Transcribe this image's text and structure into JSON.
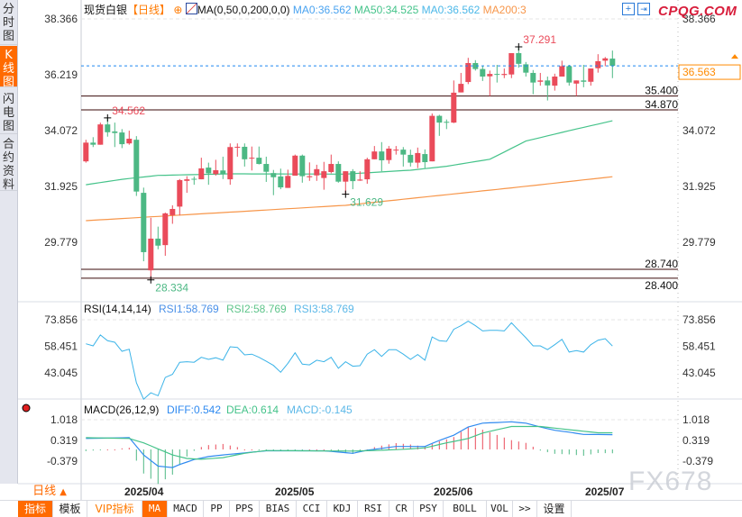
{
  "sidebar": {
    "tabs": [
      {
        "label": [
          "分",
          "时",
          "图"
        ],
        "active": false
      },
      {
        "label": [
          "K",
          "线",
          "图"
        ],
        "active": true
      },
      {
        "label": [
          "闪",
          "电",
          "图"
        ],
        "active": false
      },
      {
        "label": [
          "合",
          "约",
          "资",
          "料"
        ],
        "active": false
      }
    ]
  },
  "header": {
    "symbol": "现货白银",
    "period": "【日线】",
    "indicator": "MA(0,50,0,200,0,0)",
    "ma_values": [
      {
        "label": "MA0:36.562",
        "color": "#4aa3f0"
      },
      {
        "label": "MA50:34.525",
        "color": "#45c38a"
      },
      {
        "label": "MA0:36.562",
        "color": "#4cb8e8"
      },
      {
        "label": "MA200:3",
        "color": "#f7964a"
      }
    ],
    "logo": "CPQG.COM"
  },
  "colors": {
    "up": "#ea4b5a",
    "down": "#4cb884",
    "ma50": "#45c38a",
    "ma200": "#f7964a",
    "rsi": "#3ab3e8",
    "diff": "#2f8af0",
    "dea": "#45c38a",
    "accent": "#ff6a00"
  },
  "chart_data": {
    "type": "candlestick",
    "title": "现货白银 日线",
    "price_axis": {
      "ticks": [
        "38.366",
        "36.219",
        "34.072",
        "31.925",
        "29.779"
      ],
      "range": [
        27.9,
        38.7
      ]
    },
    "x_ticks": [
      "2025/04",
      "2025/05",
      "2025/06",
      "2025/07"
    ],
    "candles": [
      [
        32.89,
        33.72,
        32.84,
        33.61
      ],
      [
        33.61,
        33.82,
        33.44,
        33.53
      ],
      [
        33.53,
        34.38,
        33.53,
        34.31
      ],
      [
        34.31,
        34.56,
        33.84,
        34.01
      ],
      [
        34.04,
        34.38,
        33.44,
        33.98
      ],
      [
        34.0,
        34.13,
        33.4,
        33.55
      ],
      [
        33.58,
        34.07,
        33.53,
        33.76
      ],
      [
        33.72,
        33.86,
        31.56,
        31.73
      ],
      [
        31.68,
        31.88,
        29.05,
        29.4
      ],
      [
        28.7,
        30.72,
        28.334,
        29.92
      ],
      [
        29.92,
        30.38,
        29.51,
        29.65
      ],
      [
        29.67,
        30.92,
        29.26,
        30.89
      ],
      [
        30.82,
        31.2,
        30.49,
        31.06
      ],
      [
        31.15,
        32.21,
        30.81,
        32.17
      ],
      [
        32.14,
        32.32,
        31.68,
        32.2
      ],
      [
        32.22,
        32.31,
        31.99,
        32.19
      ],
      [
        32.2,
        33.03,
        32.2,
        32.62
      ],
      [
        32.65,
        32.84,
        31.99,
        32.43
      ],
      [
        32.4,
        32.95,
        32.34,
        32.55
      ],
      [
        32.54,
        33.07,
        32.21,
        32.39
      ],
      [
        32.2,
        33.58,
        31.99,
        33.44
      ],
      [
        33.42,
        33.58,
        33.07,
        33.45
      ],
      [
        33.45,
        33.58,
        32.69,
        32.97
      ],
      [
        33.01,
        33.46,
        32.54,
        33.03
      ],
      [
        33.03,
        33.46,
        32.77,
        32.79
      ],
      [
        32.79,
        33.07,
        32.1,
        32.49
      ],
      [
        32.44,
        32.56,
        31.59,
        32.28
      ],
      [
        32.31,
        32.61,
        31.82,
        31.89
      ],
      [
        31.87,
        32.57,
        31.87,
        32.33
      ],
      [
        32.34,
        33.15,
        32.34,
        33.11
      ],
      [
        33.11,
        33.15,
        32.07,
        32.32
      ],
      [
        32.28,
        32.85,
        32.14,
        32.32
      ],
      [
        32.35,
        32.76,
        32.14,
        32.59
      ],
      [
        32.25,
        32.87,
        31.8,
        32.51
      ],
      [
        32.48,
        33.15,
        32.43,
        32.79
      ],
      [
        32.79,
        32.89,
        32.07,
        32.11
      ],
      [
        32.11,
        32.51,
        31.629,
        32.51
      ],
      [
        32.51,
        32.59,
        31.82,
        32.13
      ],
      [
        32.15,
        32.51,
        32.14,
        32.19
      ],
      [
        32.2,
        33.03,
        32.03,
        32.97
      ],
      [
        32.97,
        33.48,
        32.97,
        33.27
      ],
      [
        33.27,
        33.63,
        32.51,
        32.93
      ],
      [
        32.94,
        33.48,
        32.8,
        33.38
      ],
      [
        33.31,
        33.48,
        33.15,
        33.34
      ],
      [
        33.34,
        33.44,
        32.69,
        33.15
      ],
      [
        33.14,
        33.34,
        32.69,
        32.84
      ],
      [
        32.84,
        33.42,
        32.63,
        33.21
      ],
      [
        33.17,
        33.35,
        32.63,
        32.86
      ],
      [
        32.89,
        34.73,
        32.89,
        34.64
      ],
      [
        34.64,
        34.68,
        33.87,
        34.38
      ],
      [
        34.41,
        34.5,
        34.13,
        34.38
      ],
      [
        34.38,
        36.0,
        34.36,
        35.53
      ],
      [
        35.54,
        36.29,
        35.54,
        35.87
      ],
      [
        35.94,
        36.87,
        35.86,
        36.67
      ],
      [
        36.67,
        36.78,
        36.38,
        36.44
      ],
      [
        36.44,
        36.55,
        35.98,
        36.15
      ],
      [
        36.16,
        36.38,
        35.4,
        36.25
      ],
      [
        36.25,
        36.6,
        35.92,
        36.23
      ],
      [
        36.21,
        36.46,
        36.09,
        36.25
      ],
      [
        36.23,
        37.05,
        36.09,
        37.05
      ],
      [
        37.05,
        37.291,
        36.49,
        36.64
      ],
      [
        36.62,
        36.71,
        36.15,
        36.3
      ],
      [
        36.29,
        36.4,
        35.47,
        35.92
      ],
      [
        35.95,
        36.29,
        35.8,
        36.0
      ],
      [
        36.0,
        36.15,
        35.23,
        35.81
      ],
      [
        35.8,
        36.26,
        35.61,
        36.15
      ],
      [
        36.15,
        36.76,
        36.15,
        36.55
      ],
      [
        36.55,
        36.6,
        35.8,
        35.92
      ],
      [
        35.88,
        36.0,
        35.4,
        36.0
      ],
      [
        36.0,
        36.6,
        35.74,
        35.95
      ],
      [
        35.95,
        36.46,
        35.8,
        36.46
      ],
      [
        36.47,
        37.01,
        36.3,
        36.74
      ],
      [
        36.76,
        36.9,
        36.55,
        36.85
      ],
      [
        36.84,
        37.15,
        36.09,
        36.563
      ]
    ],
    "ma50": [
      [
        0,
        31.99
      ],
      [
        5,
        32.2
      ],
      [
        10,
        32.35
      ],
      [
        20,
        32.41
      ],
      [
        36,
        32.4
      ],
      [
        45,
        32.55
      ],
      [
        50,
        32.7
      ],
      [
        56,
        32.97
      ],
      [
        61,
        33.67
      ],
      [
        67,
        34.07
      ],
      [
        73,
        34.45
      ]
    ],
    "ma200": [
      [
        0,
        30.61
      ],
      [
        36,
        31.2
      ],
      [
        60,
        31.9
      ],
      [
        73,
        32.3
      ]
    ],
    "horizontal_lines": [
      "35.400",
      "34.870",
      "28.740",
      "28.400"
    ],
    "current_price": "36.563",
    "annotations": [
      {
        "text": "34.562",
        "index": 3,
        "price": 34.562,
        "kind": "high"
      },
      {
        "text": "28.334",
        "index": 9,
        "price": 28.334,
        "kind": "low"
      },
      {
        "text": "31.629",
        "index": 36,
        "price": 31.629,
        "kind": "low"
      },
      {
        "text": "37.291",
        "index": 60,
        "price": 37.291,
        "kind": "high"
      }
    ],
    "rsi": {
      "title": "RSI(14,14,14)",
      "labels": [
        "RSI1:58.769",
        "RSI2:58.769",
        "RSI3:58.769"
      ],
      "ticks": [
        "73.856",
        "58.451",
        "43.045"
      ],
      "values": [
        59.9,
        58.7,
        65.1,
        61.7,
        60.8,
        55.6,
        56.8,
        37.3,
        27.8,
        31.5,
        29.8,
        40.4,
        42.2,
        49.2,
        49.5,
        49.2,
        52.1,
        50.9,
        51.8,
        50.4,
        58.2,
        57.8,
        53.5,
        53.9,
        52.1,
        49.8,
        47.4,
        43.4,
        48.6,
        54.7,
        48.1,
        47.7,
        50.4,
        49.5,
        52.1,
        45.7,
        49.5,
        46.9,
        47.2,
        53.9,
        56.5,
        52.6,
        56.5,
        56.5,
        53.9,
        50.9,
        53.7,
        50.4,
        63.9,
        61.7,
        61.3,
        68.3,
        70.4,
        73.0,
        70.4,
        67.4,
        67.7,
        67.7,
        67.4,
        72.1,
        67.7,
        63.4,
        58.7,
        58.7,
        56.5,
        59.4,
        62.5,
        55.1,
        56.0,
        55.1,
        59.4,
        62.0,
        62.9,
        58.6
      ]
    },
    "macd": {
      "title": "MACD(26,12,9)",
      "labels": [
        "DIFF:0.542",
        "DEA:0.614",
        "MACD:-0.145"
      ],
      "ticks": [
        "1.018",
        "0.319",
        "-0.379"
      ],
      "diff": [
        [
          0,
          0.4
        ],
        [
          6,
          0.43
        ],
        [
          8,
          -0.2
        ],
        [
          10,
          -0.61
        ],
        [
          12,
          -0.66
        ],
        [
          13,
          -0.55
        ],
        [
          15,
          -0.37
        ],
        [
          17,
          -0.26
        ],
        [
          19,
          -0.2
        ],
        [
          25,
          -0.05
        ],
        [
          33,
          -0.05
        ],
        [
          37,
          -0.14
        ],
        [
          39,
          -0.03
        ],
        [
          43,
          0.11
        ],
        [
          47,
          0.11
        ],
        [
          49,
          0.33
        ],
        [
          51,
          0.52
        ],
        [
          53,
          0.82
        ],
        [
          55,
          0.96
        ],
        [
          59,
          1.01
        ],
        [
          61,
          0.96
        ],
        [
          63,
          0.82
        ],
        [
          65,
          0.7
        ],
        [
          67,
          0.63
        ],
        [
          69,
          0.55
        ],
        [
          73,
          0.54
        ]
      ],
      "dea": [
        [
          0,
          0.43
        ],
        [
          6,
          0.4
        ],
        [
          8,
          0.24
        ],
        [
          10,
          0.02
        ],
        [
          12,
          -0.2
        ],
        [
          14,
          -0.33
        ],
        [
          16,
          -0.36
        ],
        [
          19,
          -0.3
        ],
        [
          22,
          -0.14
        ],
        [
          25,
          -0.04
        ],
        [
          37,
          -0.06
        ],
        [
          41,
          -0.03
        ],
        [
          45,
          0.02
        ],
        [
          47,
          0.06
        ],
        [
          50,
          0.24
        ],
        [
          53,
          0.4
        ],
        [
          55,
          0.6
        ],
        [
          59,
          0.84
        ],
        [
          63,
          0.84
        ],
        [
          67,
          0.72
        ],
        [
          71,
          0.61
        ],
        [
          73,
          0.61
        ]
      ]
    }
  },
  "footer": {
    "period_label": "日线",
    "period_arrow": "▲",
    "tabs": [
      "指标",
      "模板",
      "VIP指标",
      "MA",
      "MACD",
      "PP",
      "PPS",
      "BIAS",
      "CCI",
      "KDJ",
      "RSI",
      "CR",
      "PSY",
      "BOLL",
      "VOL",
      ">>",
      "设置"
    ],
    "watermark": "FX678"
  }
}
